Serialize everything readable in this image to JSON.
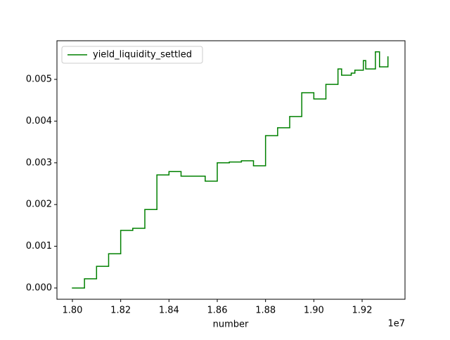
{
  "chart_data": {
    "type": "step",
    "step": "post",
    "x_label": "number",
    "x_offset_label": "1e7",
    "x": [
      18000000,
      18050000,
      18100000,
      18150000,
      18200000,
      18250000,
      18300000,
      18350000,
      18400000,
      18450000,
      18500000,
      18550000,
      18600000,
      18650000,
      18700000,
      18750000,
      18800000,
      18850000,
      18900000,
      18950000,
      19000000,
      19050000,
      19100000,
      19115000,
      19155000,
      19170000,
      19205000,
      19215000,
      19255000,
      19272000,
      19307000
    ],
    "series": [
      {
        "name": "yield_liquidity_settled",
        "color": "#008000",
        "values": [
          0,
          0.00022,
          0.00052,
          0.00082,
          0.00138,
          0.00143,
          0.00188,
          0.00271,
          0.00279,
          0.00268,
          0.00268,
          0.00256,
          0.003,
          0.00302,
          0.00305,
          0.00293,
          0.00365,
          0.00384,
          0.00411,
          0.00468,
          0.00453,
          0.00488,
          0.00525,
          0.0051,
          0.00515,
          0.00522,
          0.00545,
          0.00525,
          0.00566,
          0.0053,
          0.00554
        ]
      }
    ],
    "xlim": [
      17936000,
      19377600
    ],
    "ylim": [
      -0.00027,
      0.005926
    ],
    "xticks": [
      {
        "value": 18000000,
        "label": "1.80"
      },
      {
        "value": 18200000,
        "label": "1.82"
      },
      {
        "value": 18400000,
        "label": "1.84"
      },
      {
        "value": 18600000,
        "label": "1.86"
      },
      {
        "value": 18800000,
        "label": "1.88"
      },
      {
        "value": 19000000,
        "label": "1.90"
      },
      {
        "value": 19200000,
        "label": "1.92"
      }
    ],
    "yticks": [
      {
        "value": 0,
        "label": "0.000"
      },
      {
        "value": 0.001,
        "label": "0.001"
      },
      {
        "value": 0.002,
        "label": "0.002"
      },
      {
        "value": 0.003,
        "label": "0.003"
      },
      {
        "value": 0.004,
        "label": "0.004"
      },
      {
        "value": 0.005,
        "label": "0.005"
      }
    ],
    "legend": "upper left",
    "grid": false
  }
}
